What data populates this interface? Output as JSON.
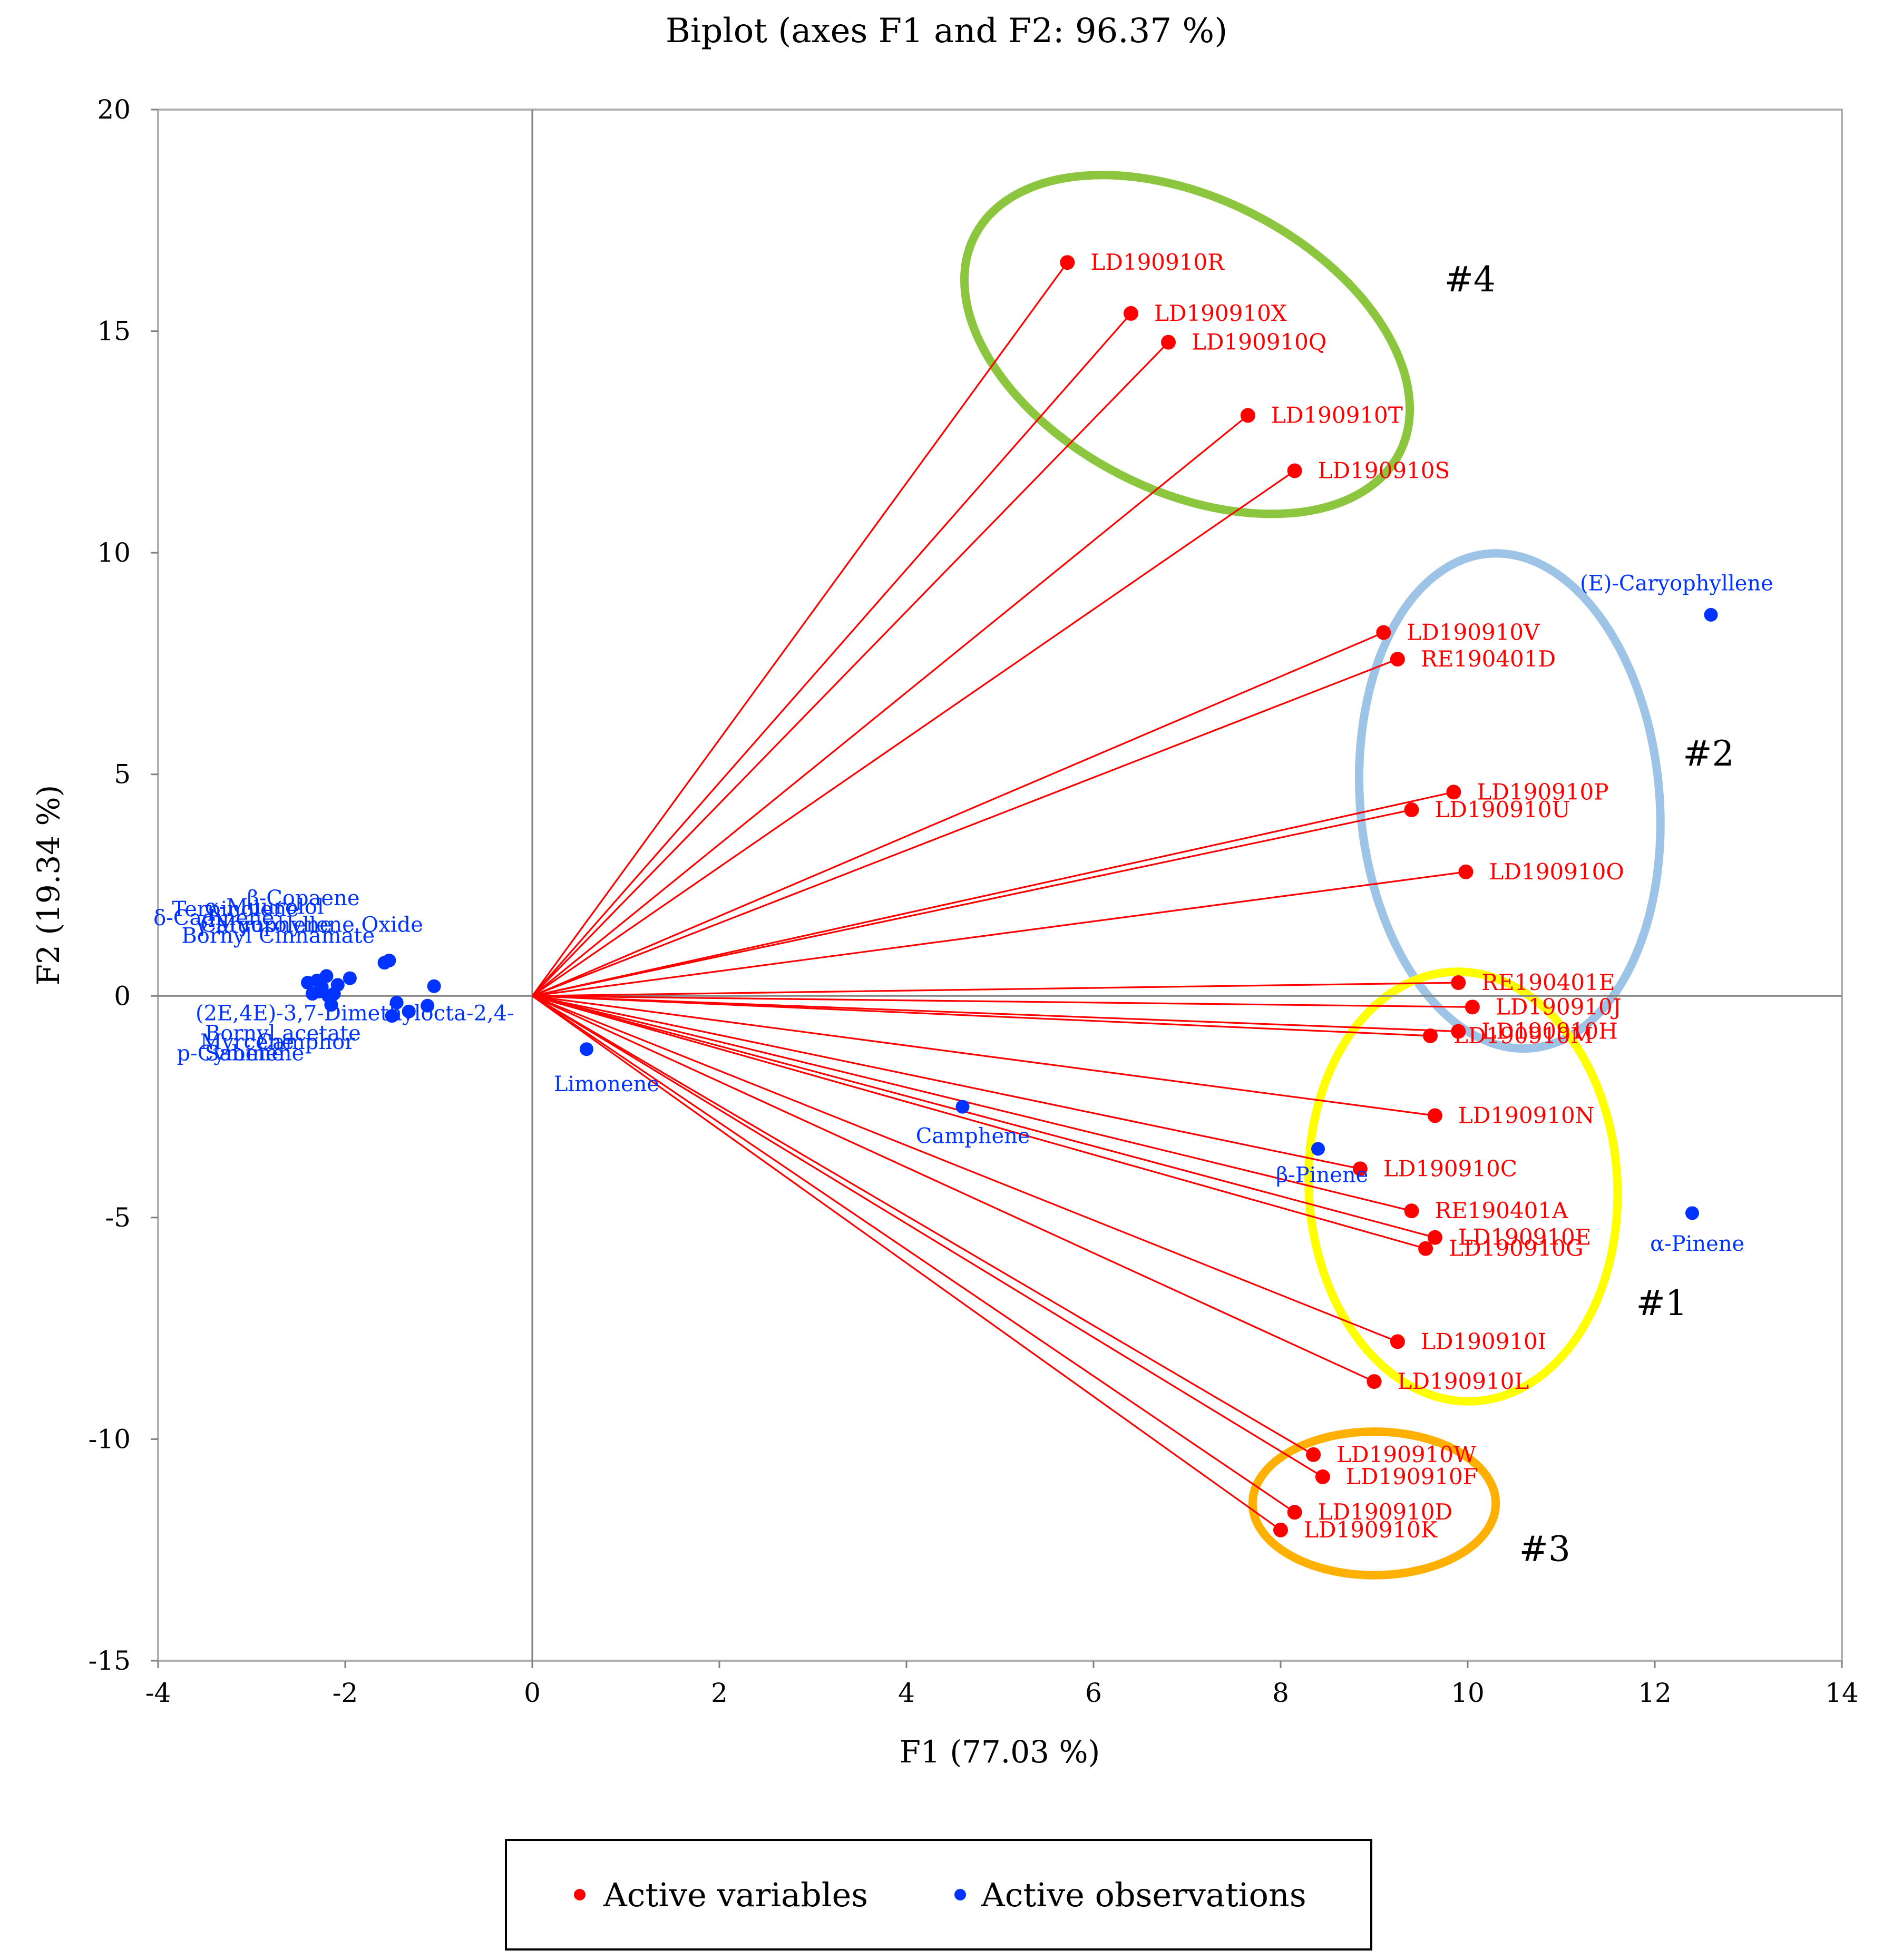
{
  "chart_data": {
    "type": "scatter",
    "subtype": "biplot",
    "title": "Biplot (axes F1 and F2: 96.37 %)",
    "xlabel": "F1 (77.03 %)",
    "ylabel": "F2 (19.34 %)",
    "xlim": [
      -4,
      14
    ],
    "ylim": [
      -15,
      20
    ],
    "xticks": [
      -4,
      -2,
      0,
      2,
      4,
      6,
      8,
      10,
      12,
      14
    ],
    "yticks": [
      -15,
      -10,
      -5,
      0,
      5,
      10,
      15,
      20
    ],
    "grid": false,
    "colors": {
      "variables": "#ff0000",
      "observations": "#0033ff",
      "axes": "#808080"
    },
    "legend": {
      "position": "bottom-center",
      "entries": [
        {
          "label": "Active variables",
          "color": "#ff0000"
        },
        {
          "label": "Active observations",
          "color": "#0033ff"
        }
      ]
    },
    "variables": [
      {
        "name": "LD190910R",
        "x": 5.72,
        "y": 16.55
      },
      {
        "name": "LD190910X",
        "x": 6.4,
        "y": 15.4
      },
      {
        "name": "LD190910Q",
        "x": 6.8,
        "y": 14.75
      },
      {
        "name": "LD190910T",
        "x": 7.65,
        "y": 13.1
      },
      {
        "name": "LD190910S",
        "x": 8.15,
        "y": 11.85
      },
      {
        "name": "LD190910V",
        "x": 9.1,
        "y": 8.2
      },
      {
        "name": "RE190401D",
        "x": 9.25,
        "y": 7.6
      },
      {
        "name": "LD190910P",
        "x": 9.85,
        "y": 4.6
      },
      {
        "name": "LD190910U",
        "x": 9.4,
        "y": 4.2
      },
      {
        "name": "LD190910O",
        "x": 9.98,
        "y": 2.8
      },
      {
        "name": "RE190401E",
        "x": 9.9,
        "y": 0.3
      },
      {
        "name": "LD190910J",
        "x": 10.05,
        "y": -0.25
      },
      {
        "name": "LD190910H",
        "x": 9.9,
        "y": -0.8
      },
      {
        "name": "LD190910M",
        "x": 9.6,
        "y": -0.9
      },
      {
        "name": "LD190910N",
        "x": 9.65,
        "y": -2.7
      },
      {
        "name": "LD190910C",
        "x": 8.85,
        "y": -3.9
      },
      {
        "name": "RE190401A",
        "x": 9.4,
        "y": -4.85
      },
      {
        "name": "LD190910E",
        "x": 9.65,
        "y": -5.45
      },
      {
        "name": "LD190910G",
        "x": 9.55,
        "y": -5.7
      },
      {
        "name": "LD190910I",
        "x": 9.25,
        "y": -7.8
      },
      {
        "name": "LD190910L",
        "x": 9.0,
        "y": -8.7
      },
      {
        "name": "LD190910W",
        "x": 8.35,
        "y": -10.35
      },
      {
        "name": "LD190910F",
        "x": 8.45,
        "y": -10.85
      },
      {
        "name": "LD190910D",
        "x": 8.15,
        "y": -11.65
      },
      {
        "name": "LD190910K",
        "x": 8.0,
        "y": -12.05
      }
    ],
    "observations_labeled": [
      {
        "name": "(E)-Caryophyllene",
        "x": 12.6,
        "y": 8.6
      },
      {
        "name": "α-Pinene",
        "x": 12.4,
        "y": -4.9
      },
      {
        "name": "β-Pinene",
        "x": 8.4,
        "y": -3.45
      },
      {
        "name": "Camphene",
        "x": 4.6,
        "y": -2.5
      },
      {
        "name": "Limonene",
        "x": 0.58,
        "y": -1.2
      }
    ],
    "observations_cluster": [
      {
        "x": -2.4,
        "y": 0.3
      },
      {
        "x": -2.35,
        "y": 0.05
      },
      {
        "x": -2.3,
        "y": 0.35
      },
      {
        "x": -2.28,
        "y": 0.1
      },
      {
        "x": -2.25,
        "y": 0.2
      },
      {
        "x": -2.2,
        "y": 0.45
      },
      {
        "x": -2.18,
        "y": 0.0
      },
      {
        "x": -2.15,
        "y": -0.2
      },
      {
        "x": -2.12,
        "y": 0.05
      },
      {
        "x": -2.08,
        "y": 0.25
      },
      {
        "x": -1.95,
        "y": 0.4
      },
      {
        "x": -1.58,
        "y": 0.75
      },
      {
        "x": -1.53,
        "y": 0.8
      },
      {
        "x": -1.5,
        "y": -0.45
      },
      {
        "x": -1.45,
        "y": -0.15
      },
      {
        "x": -1.32,
        "y": -0.35
      },
      {
        "x": -1.12,
        "y": -0.22
      },
      {
        "x": -1.05,
        "y": 0.22
      }
    ],
    "cluster_labels": [
      "β-Copaene",
      "α-Muurolol",
      "δ-Cadinene",
      "γ-Muurolene",
      "Caryophyllene Oxide",
      "Bornyl Cinnamate",
      "(2E,4E)-3,7-Dimethylocta-2,4-",
      "Bornyl acetate",
      "Myrcene",
      "Camphor",
      "p-Cymene",
      "Sabinene",
      "Terpinolene"
    ],
    "groups": [
      {
        "label": "#4",
        "color": "#8cc63f",
        "cx": 7.0,
        "cy": 14.7,
        "rx": 2.55,
        "ry": 3.3,
        "rotate": 27
      },
      {
        "label": "#2",
        "color": "#9dc3e6",
        "cx": 10.45,
        "cy": 4.4,
        "rx": 1.6,
        "ry": 5.6,
        "rotate": -5
      },
      {
        "label": "#1",
        "color": "#ffff00",
        "cx": 9.95,
        "cy": -4.3,
        "rx": 1.65,
        "ry": 4.85,
        "rotate": -3
      },
      {
        "label": "#3",
        "color": "#ffb000",
        "cx": 9.0,
        "cy": -11.45,
        "rx": 1.3,
        "ry": 1.62,
        "rotate": 0
      }
    ]
  }
}
